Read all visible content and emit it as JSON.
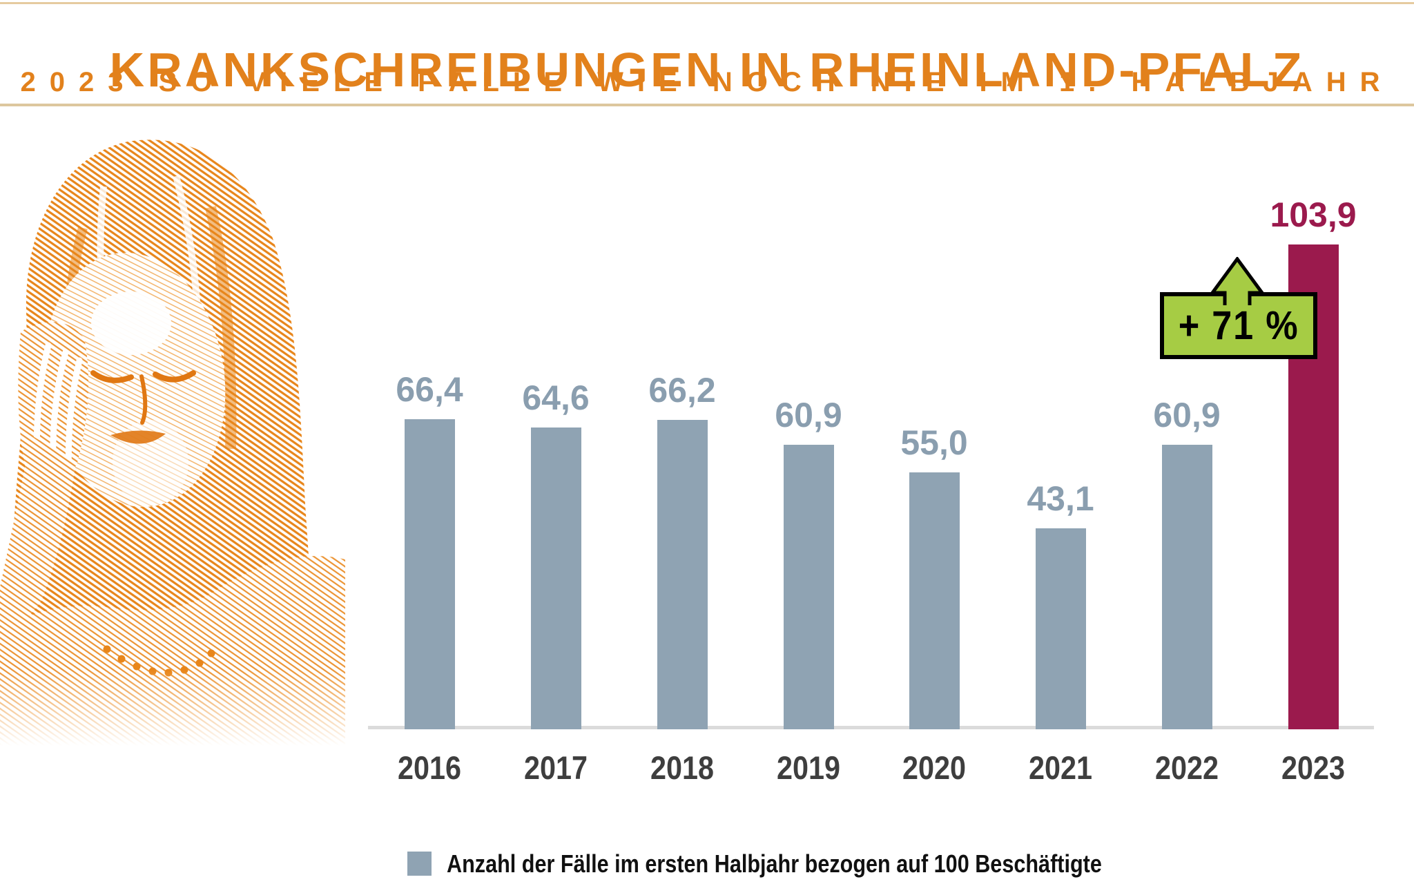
{
  "header": {
    "title": "KRANKSCHREIBUNGEN IN RHEINLAND-PFALZ",
    "subtitle": "2023 SO VIELE FÄLLE WIE NOCH NIE IM 1. HALBJAHR",
    "title_color": "#E2811C",
    "rule_color": "#DDC79E"
  },
  "illustration": {
    "description": "woman with headache, orange halftone engraving style",
    "color": "#E8861B"
  },
  "callout": {
    "label": "+ 71 %",
    "fill_color": "#A6CC44",
    "border_color": "#000000",
    "applies_to": "2023"
  },
  "legend": {
    "swatch_color": "#8FA3B3",
    "label": "Anzahl der Fälle im ersten Halbjahr bezogen auf 100 Beschäftigte"
  },
  "chart_data": {
    "type": "bar",
    "title": "Krankschreibungen in Rheinland-Pfalz, Fälle je 100 Beschäftigte im 1. Halbjahr",
    "categories": [
      "2016",
      "2017",
      "2018",
      "2019",
      "2020",
      "2021",
      "2022",
      "2023"
    ],
    "values": [
      66.4,
      64.6,
      66.2,
      60.9,
      55.0,
      43.1,
      60.9,
      103.9
    ],
    "value_labels": [
      "66,4",
      "64,6",
      "66,2",
      "60,9",
      "55,0",
      "43,1",
      "60,9",
      "103,9"
    ],
    "highlight_index": 7,
    "annotation": {
      "text": "+ 71 %",
      "applies_to": "2023"
    },
    "ylim": [
      0,
      110
    ],
    "grid": false,
    "legend_position": "bottom",
    "colors": {
      "bar": "#8FA3B3",
      "bar_highlight": "#9B1A4D",
      "value_label": "#8A9EAF",
      "value_label_highlight": "#9B1A4D",
      "year_label": "#3E3E3E",
      "axis_line": "#DBDBDB"
    }
  }
}
